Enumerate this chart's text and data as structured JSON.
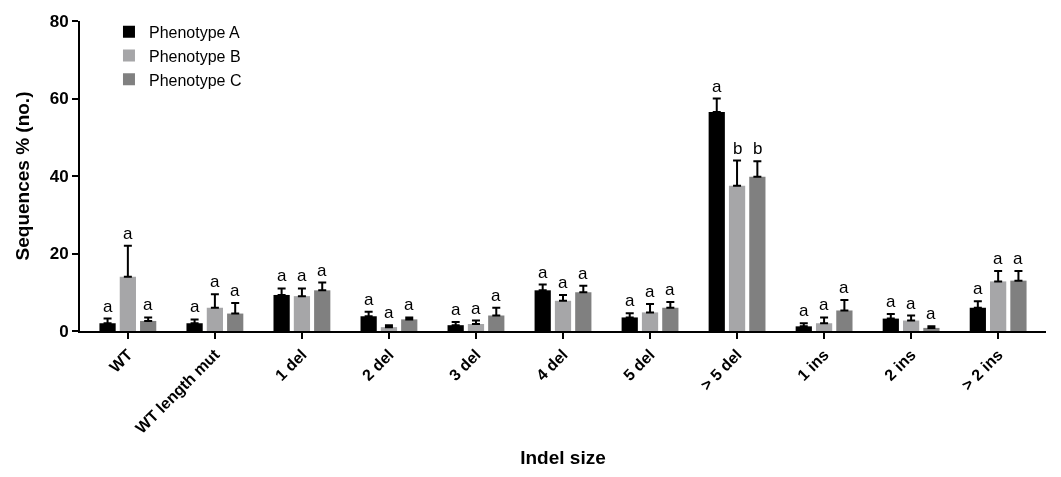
{
  "chart_data": {
    "type": "bar",
    "xlabel": "Indel size",
    "ylabel": "Sequences % (no.)",
    "categories": [
      "WT",
      "WT length mut",
      "1 del",
      "2 del",
      "3 del",
      "4 del",
      "5 del",
      "> 5 del",
      "1 ins",
      "2 ins",
      "> 2 ins"
    ],
    "ylim": [
      0,
      80
    ],
    "yticks": [
      0,
      20,
      40,
      60,
      80
    ],
    "legend": "top left",
    "series": [
      {
        "name": "Phenotype A",
        "color": "#000000",
        "values": [
          2,
          2,
          9.3,
          3.8,
          1.5,
          10.5,
          3.5,
          56.5,
          1.2,
          3.2,
          6
        ],
        "errors": [
          [
            2,
            3.2
          ],
          [
            2,
            3
          ],
          [
            9.3,
            11
          ],
          [
            3.8,
            5
          ],
          [
            1.5,
            2.3
          ],
          [
            10.5,
            12
          ],
          [
            3.5,
            4.6
          ],
          [
            56.5,
            60
          ],
          [
            1.2,
            2
          ],
          [
            3.2,
            4.4
          ],
          [
            6,
            7.7
          ]
        ],
        "value_labels": [
          "a",
          "a",
          "a",
          "a",
          "a",
          "a",
          "a",
          "a",
          "a",
          "a",
          "a"
        ]
      },
      {
        "name": "Phenotype B",
        "color": "#a6a6a8",
        "values": [
          14,
          6,
          9,
          1,
          1.8,
          7.8,
          4.8,
          37.5,
          2,
          2.7,
          12.8
        ],
        "errors": [
          [
            14,
            22
          ],
          [
            6,
            9.5
          ],
          [
            9,
            11
          ],
          [
            1,
            1.5
          ],
          [
            1.8,
            2.7
          ],
          [
            7.8,
            9.3
          ],
          [
            4.8,
            7
          ],
          [
            37.5,
            44
          ],
          [
            2,
            3.5
          ],
          [
            2.7,
            4
          ],
          [
            12.8,
            15.5
          ]
        ],
        "value_labels": [
          "a",
          "a",
          "a",
          "a",
          "a",
          "a",
          "a",
          "b",
          "a",
          "a",
          "a"
        ]
      },
      {
        "name": "Phenotype C",
        "color": "#808080",
        "values": [
          2.6,
          4.5,
          10.5,
          3,
          4,
          10,
          6,
          39.8,
          5.3,
          0.8,
          13
        ],
        "errors": [
          [
            2.6,
            3.5
          ],
          [
            4.5,
            7.2
          ],
          [
            10.5,
            12.5
          ],
          [
            3,
            3.5
          ],
          [
            4,
            6
          ],
          [
            10,
            11.7
          ],
          [
            6,
            7.5
          ],
          [
            39.8,
            43.8
          ],
          [
            5.3,
            8
          ],
          [
            0.8,
            1.2
          ],
          [
            13,
            15.5
          ]
        ],
        "value_labels": [
          "a",
          "a",
          "a",
          "a",
          "a",
          "a",
          "a",
          "b",
          "a",
          "a",
          "a"
        ]
      }
    ]
  }
}
